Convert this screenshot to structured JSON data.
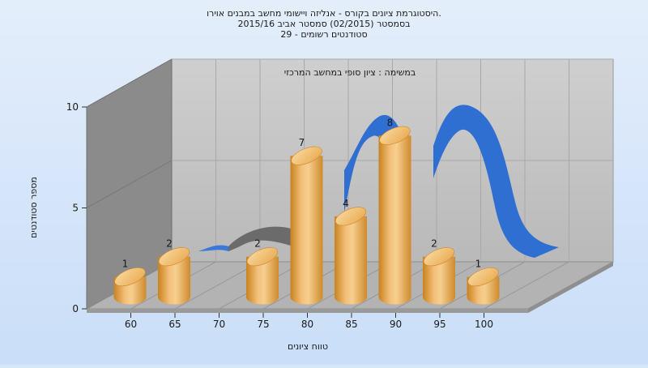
{
  "chart_data": {
    "type": "bar",
    "title_lines": [
      "היסטוגרמת ציונים בקורס - אנליזה ויישומי מחשב במבנים אוירו.",
      "בסמסטר  (02/2015)  סמסטר אביב 2015/16",
      "סטודנטים רשומים - 29"
    ],
    "subtitle": "במשימה : ציון סופי במחשב המרכזי",
    "xlabel": "טווח ציונים",
    "ylabel": "מספר סטודנטים",
    "categories": [
      "60",
      "65",
      "70",
      "75",
      "80",
      "85",
      "90",
      "95",
      "100"
    ],
    "bars": [
      {
        "x": 57.5,
        "value": 1,
        "label": "1"
      },
      {
        "x": 62.5,
        "value": 2,
        "label": "2"
      },
      {
        "x": 72.5,
        "value": 2,
        "label": "2"
      },
      {
        "x": 77.5,
        "value": 7,
        "label": "7"
      },
      {
        "x": 82.5,
        "value": 4,
        "label": "4"
      },
      {
        "x": 87.5,
        "value": 8,
        "label": "8"
      },
      {
        "x": 92.5,
        "value": 2,
        "label": "2"
      },
      {
        "x": 97.5,
        "value": 1,
        "label": "1"
      }
    ],
    "yticks": [
      "0",
      "5",
      "10"
    ],
    "ylim": [
      0,
      10
    ],
    "xlim": [
      55,
      105
    ],
    "grid": true,
    "legend": "none",
    "colors": {
      "background": "#d6e7fa",
      "bar": "#e9a94e",
      "curve": "#2f6fd2",
      "curve_back": "#6e6e6e",
      "wall": "#c0c0c0",
      "side_wall": "#8a8a8a",
      "floor": "#b4b4b4"
    }
  }
}
